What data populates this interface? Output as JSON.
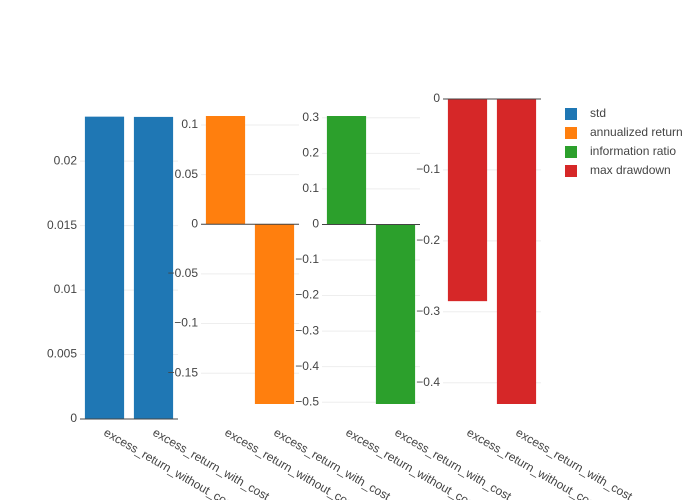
{
  "chart_data": {
    "type": "bar",
    "categories": [
      "excess_return_without_cost",
      "excess_return_with_cost"
    ],
    "legend_position": "top-right",
    "grid": true,
    "subplots": [
      {
        "name": "std",
        "color": "#1f77b4",
        "values": [
          0.02345,
          0.02343
        ],
        "ylim": [
          0,
          0.0235
        ],
        "yticks": [
          0,
          0.005,
          0.01,
          0.015,
          0.02
        ],
        "ytick_labels": [
          "0",
          "0.005",
          "0.01",
          "0.015",
          "0.02"
        ]
      },
      {
        "name": "annualized return",
        "color": "#ff7f0e",
        "values": [
          0.109,
          -0.181
        ],
        "ylim": [
          -0.181,
          0.109
        ],
        "yticks": [
          0.1,
          0.05,
          0,
          -0.05,
          -0.1,
          -0.15
        ],
        "ytick_labels": [
          "0.1",
          "0.05",
          "0",
          "−0.05",
          "−0.1",
          "−0.15"
        ]
      },
      {
        "name": "information ratio",
        "color": "#2ca02c",
        "values": [
          0.305,
          -0.505
        ],
        "ylim": [
          -0.505,
          0.305
        ],
        "yticks": [
          0.3,
          0.2,
          0.1,
          0,
          -0.1,
          -0.2,
          -0.3,
          -0.4,
          -0.5
        ],
        "ytick_labels": [
          "0.3",
          "0.2",
          "0.1",
          "0",
          "−0.1",
          "−0.2",
          "−0.3",
          "−0.4",
          "−0.5"
        ]
      },
      {
        "name": "max drawdown",
        "color": "#d62728",
        "values": [
          -0.285,
          -0.43
        ],
        "ylim": [
          -0.43,
          0
        ],
        "yticks": [
          0,
          -0.1,
          -0.2,
          -0.3,
          -0.4
        ],
        "ytick_labels": [
          "0",
          "−0.1",
          "−0.2",
          "−0.3",
          "−0.4"
        ]
      }
    ]
  }
}
